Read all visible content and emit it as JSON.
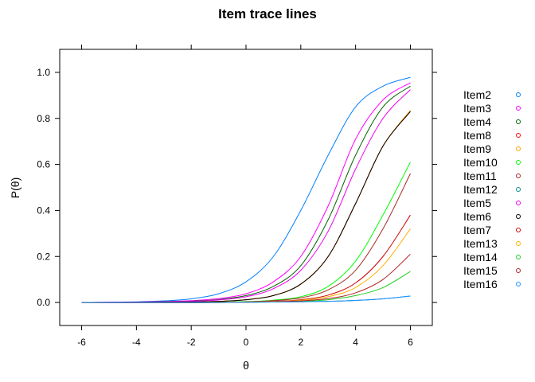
{
  "chart_data": {
    "type": "line",
    "title": "Item trace lines",
    "xlabel": "θ",
    "ylabel": "P(θ)",
    "xlim": [
      -6.8,
      6.8
    ],
    "ylim": [
      -0.1,
      1.1
    ],
    "xticks": [
      -6,
      -4,
      -2,
      0,
      2,
      4,
      6
    ],
    "yticks": [
      0.0,
      0.2,
      0.4,
      0.6,
      0.8,
      1.0
    ],
    "ytick_labels": [
      "0.0",
      "0.2",
      "0.4",
      "0.6",
      "0.8",
      "1.0"
    ],
    "legend_position": "right",
    "x": [
      -6,
      -5,
      -4,
      -3,
      -2,
      -1,
      0,
      1,
      2,
      3,
      4,
      5,
      6
    ],
    "series": [
      {
        "name": "Item2",
        "color": "#0080FF",
        "values": [
          0.0,
          0.001,
          0.003,
          0.007,
          0.016,
          0.038,
          0.09,
          0.2,
          0.4,
          0.64,
          0.85,
          0.94,
          0.978
        ]
      },
      {
        "name": "Item3",
        "color": "#FF00FF",
        "values": [
          0.0,
          0.001,
          0.002,
          0.004,
          0.008,
          0.017,
          0.038,
          0.09,
          0.2,
          0.42,
          0.71,
          0.88,
          0.955
        ]
      },
      {
        "name": "Item4",
        "color": "#006400",
        "values": [
          0.0,
          0.0,
          0.001,
          0.003,
          0.006,
          0.013,
          0.03,
          0.07,
          0.16,
          0.36,
          0.64,
          0.85,
          0.94
        ]
      },
      {
        "name": "Item8",
        "color": "#FF0000",
        "values": [
          0.0,
          0.0,
          0.0,
          0.001,
          0.002,
          0.005,
          0.012,
          0.03,
          0.08,
          0.2,
          0.43,
          0.68,
          0.83
        ]
      },
      {
        "name": "Item9",
        "color": "#FFA500",
        "values": [
          0.0,
          0.0,
          0.0,
          0.001,
          0.002,
          0.005,
          0.012,
          0.03,
          0.08,
          0.2,
          0.43,
          0.68,
          0.835
        ]
      },
      {
        "name": "Item10",
        "color": "#00FF00",
        "values": [
          0.0,
          0.0,
          0.0,
          0.0,
          0.001,
          0.002,
          0.004,
          0.01,
          0.025,
          0.07,
          0.18,
          0.38,
          0.61
        ]
      },
      {
        "name": "Item11",
        "color": "#A52A2A",
        "values": [
          0.0,
          0.0,
          0.0,
          0.0,
          0.0,
          0.001,
          0.003,
          0.008,
          0.02,
          0.055,
          0.14,
          0.32,
          0.56
        ]
      },
      {
        "name": "Item12",
        "color": "#008B8B",
        "values": [
          0.0,
          0.0,
          0.0,
          0.0,
          0.0,
          0.0,
          0.001,
          0.002,
          0.003,
          0.005,
          0.009,
          0.016,
          0.028
        ]
      },
      {
        "name": "Item5",
        "color": "#EE00EE",
        "values": [
          0.0,
          0.0,
          0.001,
          0.002,
          0.005,
          0.011,
          0.025,
          0.06,
          0.14,
          0.31,
          0.58,
          0.8,
          0.925
        ]
      },
      {
        "name": "Item6",
        "color": "#000000",
        "values": [
          0.0,
          0.0,
          0.0,
          0.001,
          0.002,
          0.005,
          0.012,
          0.03,
          0.08,
          0.2,
          0.43,
          0.68,
          0.83
        ]
      },
      {
        "name": "Item7",
        "color": "#CC0000",
        "values": [
          0.0,
          0.0,
          0.0,
          0.0,
          0.0,
          0.001,
          0.002,
          0.005,
          0.012,
          0.032,
          0.085,
          0.2,
          0.38
        ]
      },
      {
        "name": "Item13",
        "color": "#FFB000",
        "values": [
          0.0,
          0.0,
          0.0,
          0.0,
          0.0,
          0.001,
          0.002,
          0.004,
          0.01,
          0.025,
          0.065,
          0.16,
          0.32
        ]
      },
      {
        "name": "Item14",
        "color": "#22CC22",
        "values": [
          0.0,
          0.0,
          0.0,
          0.0,
          0.0,
          0.0,
          0.001,
          0.002,
          0.005,
          0.012,
          0.03,
          0.065,
          0.135
        ]
      },
      {
        "name": "Item15",
        "color": "#B22222",
        "values": [
          0.0,
          0.0,
          0.0,
          0.0,
          0.0,
          0.0,
          0.001,
          0.003,
          0.007,
          0.017,
          0.042,
          0.1,
          0.21
        ]
      },
      {
        "name": "Item16",
        "color": "#1E90FF",
        "values": [
          0.0,
          0.0,
          0.0,
          0.0,
          0.0,
          0.0,
          0.001,
          0.002,
          0.003,
          0.005,
          0.009,
          0.016,
          0.028
        ]
      }
    ]
  }
}
